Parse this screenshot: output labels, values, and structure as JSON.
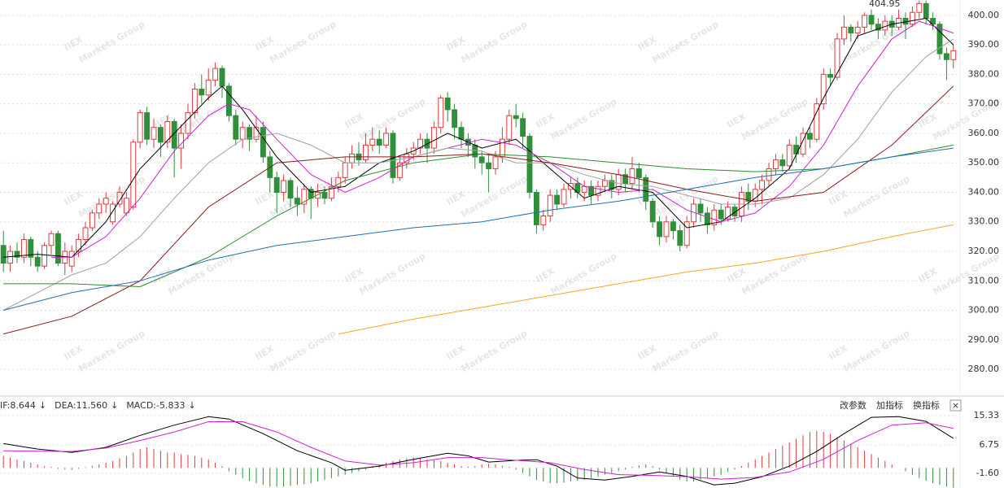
{
  "chart_data": [
    {
      "type": "candlestick",
      "xlim": [
        -0.5,
        139.5
      ],
      "ylim": [
        271.2,
        405.2
      ],
      "yticks": [
        {
          "value": 280,
          "label": "280.00"
        },
        {
          "value": 290,
          "label": "290.00"
        },
        {
          "value": 300,
          "label": "300.00"
        },
        {
          "value": 310,
          "label": "310.00"
        },
        {
          "value": 320,
          "label": "320.00"
        },
        {
          "value": 330,
          "label": "330.00"
        },
        {
          "value": 340,
          "label": "340.00"
        },
        {
          "value": 350,
          "label": "350.00"
        },
        {
          "value": 360,
          "label": "360.00"
        },
        {
          "value": 370,
          "label": "370.00"
        },
        {
          "value": 380,
          "label": "380.00"
        },
        {
          "value": 390,
          "label": "390.00"
        },
        {
          "value": 400,
          "label": "400.00"
        }
      ],
      "grid": true,
      "up_color": "#e0393e",
      "down_color": "#2f8f3a",
      "open": [
        322,
        316,
        320,
        318,
        324,
        318,
        315,
        322,
        326,
        316,
        315,
        320,
        324,
        328,
        333,
        336,
        330,
        336,
        333,
        335,
        357,
        367,
        358,
        362,
        357,
        364,
        355,
        360,
        367,
        375,
        373,
        378,
        382,
        376,
        366,
        358,
        362,
        358,
        362,
        352,
        345,
        340,
        344,
        338,
        336,
        341,
        338,
        340,
        338,
        342,
        345,
        350,
        353,
        351,
        356,
        358,
        356,
        360,
        345,
        350,
        353,
        355,
        358,
        355,
        362,
        372,
        368,
        362,
        358,
        356,
        352,
        350,
        348,
        352,
        358,
        366,
        365,
        359,
        340,
        329,
        332,
        339,
        336,
        341,
        343,
        340,
        342,
        339,
        342,
        344,
        341,
        346,
        343,
        348,
        345,
        337,
        330,
        325,
        330,
        327,
        322,
        330,
        336,
        333,
        329,
        334,
        331,
        335,
        332,
        340,
        337,
        341,
        344,
        348,
        351,
        349,
        356,
        353,
        360,
        358,
        370,
        380,
        379,
        392,
        396,
        394,
        396,
        400,
        397,
        395,
        398,
        396,
        399,
        397,
        401,
        404,
        399,
        397,
        387,
        385
      ],
      "close": [
        316,
        320,
        318,
        324,
        318,
        315,
        322,
        326,
        316,
        320,
        320,
        324,
        328,
        333,
        336,
        338,
        336,
        340,
        338,
        357,
        367,
        358,
        362,
        357,
        364,
        355,
        360,
        367,
        375,
        373,
        378,
        382,
        376,
        366,
        358,
        362,
        358,
        362,
        352,
        345,
        340,
        344,
        338,
        336,
        341,
        338,
        340,
        338,
        342,
        345,
        350,
        353,
        351,
        356,
        358,
        356,
        360,
        345,
        350,
        353,
        355,
        358,
        355,
        362,
        372,
        368,
        362,
        358,
        356,
        352,
        350,
        348,
        352,
        358,
        366,
        365,
        359,
        340,
        329,
        332,
        339,
        336,
        341,
        343,
        340,
        342,
        339,
        342,
        344,
        341,
        346,
        343,
        348,
        345,
        337,
        330,
        325,
        330,
        327,
        322,
        330,
        336,
        333,
        329,
        334,
        331,
        335,
        332,
        340,
        337,
        341,
        344,
        348,
        351,
        349,
        356,
        353,
        360,
        358,
        370,
        380,
        379,
        392,
        396,
        394,
        396,
        400,
        397,
        395,
        398,
        396,
        399,
        397,
        401,
        404,
        399,
        397,
        387,
        385,
        388
      ],
      "high": [
        327,
        322,
        323,
        326,
        325,
        320,
        323,
        327,
        327,
        323,
        322,
        326,
        330,
        334,
        338,
        340,
        337,
        342,
        340,
        358,
        368,
        369,
        365,
        363,
        366,
        365,
        363,
        370,
        377,
        380,
        382,
        384,
        383,
        377,
        368,
        364,
        363,
        366,
        364,
        354,
        347,
        346,
        345,
        342,
        343,
        342,
        343,
        342,
        345,
        347,
        352,
        356,
        357,
        360,
        362,
        361,
        362,
        361,
        352,
        355,
        357,
        360,
        360,
        364,
        373,
        374,
        370,
        364,
        360,
        358,
        354,
        353,
        354,
        362,
        368,
        370,
        367,
        360,
        341,
        334,
        341,
        341,
        343,
        345,
        345,
        344,
        344,
        344,
        346,
        346,
        348,
        348,
        352,
        350,
        346,
        338,
        332,
        332,
        331,
        329,
        332,
        338,
        338,
        335,
        336,
        336,
        337,
        336,
        342,
        343,
        343,
        346,
        350,
        353,
        353,
        358,
        359,
        362,
        362,
        372,
        382,
        382,
        394,
        400,
        397,
        398,
        401,
        402,
        399,
        400,
        400,
        402,
        401,
        403,
        405,
        405,
        401,
        398,
        389,
        390
      ],
      "low": [
        313,
        313,
        316,
        316,
        315,
        313,
        314,
        319,
        315,
        312,
        313,
        318,
        322,
        327,
        331,
        333,
        329,
        335,
        332,
        334,
        355,
        356,
        355,
        352,
        355,
        345,
        348,
        358,
        365,
        370,
        371,
        376,
        372,
        364,
        356,
        355,
        354,
        357,
        350,
        340,
        333,
        337,
        335,
        332,
        333,
        331,
        335,
        336,
        337,
        340,
        343,
        348,
        349,
        350,
        354,
        353,
        355,
        343,
        344,
        348,
        351,
        353,
        350,
        353,
        360,
        364,
        358,
        355,
        352,
        348,
        346,
        340,
        346,
        350,
        356,
        362,
        355,
        338,
        326,
        327,
        330,
        334,
        335,
        338,
        338,
        337,
        336,
        337,
        340,
        338,
        339,
        340,
        341,
        340,
        334,
        328,
        322,
        323,
        324,
        320,
        321,
        328,
        330,
        326,
        327,
        329,
        330,
        330,
        330,
        334,
        335,
        336,
        342,
        346,
        347,
        348,
        350,
        352,
        355,
        357,
        368,
        376,
        378,
        390,
        391,
        392,
        394,
        395,
        392,
        393,
        393,
        395,
        392,
        396,
        399,
        397,
        395,
        385,
        378,
        382
      ],
      "lines": [
        {
          "color": "#000000",
          "x": [
            0,
            5,
            10,
            15,
            20,
            25,
            30,
            32,
            35,
            40,
            45,
            50,
            55,
            60,
            65,
            70,
            75,
            80,
            85,
            90,
            95,
            100,
            105,
            110,
            115,
            120,
            125,
            130,
            135,
            139
          ],
          "values": [
            318,
            319,
            318,
            330,
            348,
            360,
            372,
            376,
            368,
            352,
            340,
            342,
            350,
            354,
            360,
            355,
            358,
            348,
            338,
            342,
            340,
            328,
            330,
            338,
            348,
            372,
            393,
            397,
            399,
            390
          ]
        },
        {
          "color": "#d020d0",
          "x": [
            7,
            10,
            15,
            20,
            25,
            30,
            33,
            36,
            40,
            45,
            50,
            55,
            60,
            65,
            70,
            75,
            80,
            85,
            90,
            95,
            100,
            105,
            110,
            115,
            120,
            125,
            130,
            134,
            139
          ],
          "values": [
            318,
            318,
            325,
            338,
            354,
            366,
            370,
            368,
            358,
            346,
            340,
            345,
            352,
            355,
            358,
            356,
            350,
            342,
            340,
            341,
            334,
            330,
            333,
            342,
            356,
            376,
            392,
            398,
            394
          ]
        },
        {
          "color": "#a0a0a0",
          "x": [
            0,
            5,
            10,
            15,
            20,
            25,
            30,
            35,
            40,
            45,
            50,
            55,
            60,
            65,
            70,
            75,
            80,
            85,
            90,
            95,
            100,
            105,
            110,
            115,
            120,
            125,
            130,
            135,
            139
          ],
          "values": [
            300,
            306,
            312,
            316,
            325,
            338,
            350,
            358,
            360,
            356,
            350,
            350,
            352,
            355,
            354,
            350,
            350,
            346,
            343,
            342,
            339,
            336,
            336,
            338,
            346,
            358,
            374,
            386,
            392
          ]
        },
        {
          "color": "#8b1a1a",
          "x": [
            0,
            10,
            20,
            30,
            40,
            50,
            60,
            70,
            80,
            90,
            100,
            110,
            120,
            130,
            139
          ],
          "values": [
            292,
            298,
            310,
            335,
            350,
            352,
            352,
            353,
            350,
            346,
            341,
            337,
            340,
            356,
            376
          ]
        },
        {
          "color": "#2e8b2e",
          "x": [
            0,
            10,
            20,
            30,
            40,
            50,
            60,
            70,
            80,
            90,
            100,
            110,
            120,
            130,
            139
          ],
          "values": [
            309,
            309,
            308,
            318,
            332,
            344,
            350,
            353,
            352,
            350,
            348,
            347,
            348,
            352,
            356
          ]
        },
        {
          "color": "#1f6fb5",
          "x": [
            0,
            10,
            20,
            30,
            40,
            50,
            60,
            70,
            80,
            90,
            100,
            110,
            120,
            130,
            139
          ],
          "values": [
            300,
            306,
            310,
            317,
            322,
            325,
            328,
            330,
            334,
            337,
            341,
            345,
            348,
            352,
            355
          ]
        },
        {
          "color": "#f5a623",
          "x": [
            49,
            60,
            70,
            80,
            90,
            100,
            110,
            120,
            130,
            139
          ],
          "values": [
            292,
            297,
            301,
            305,
            309,
            313,
            316,
            320,
            325,
            329
          ]
        }
      ],
      "max_label": 404.95,
      "watermark": "IIEX",
      "watermark_sub": "Markets Group"
    },
    {
      "type": "macd",
      "xlim": [
        -0.5,
        139.5
      ],
      "ylim": [
        -5.9,
        20.3
      ],
      "yticks": [
        15.33,
        6.75,
        {
          "value": -1.6,
          "label": "-1.60"
        }
      ],
      "grid": true,
      "up_color": "#e0393e",
      "down_color": "#2f8f3a",
      "legend": [
        {
          "text": "IF:8.644",
          "arrow": "↓",
          "color": "#000000"
        },
        {
          "text": "DEA:11.560",
          "arrow": "↓",
          "color": "#d020d0"
        },
        {
          "text": "MACD:-5.833",
          "arrow": "↓",
          "color": "#888888"
        }
      ],
      "bars": [
        3.5,
        3.0,
        2.5,
        2.0,
        1.5,
        1.0,
        0.5,
        0.3,
        -0.3,
        -0.5,
        -0.6,
        -0.3,
        0.2,
        0.6,
        1.0,
        1.5,
        2.0,
        2.8,
        3.5,
        4.5,
        5.5,
        6.0,
        5.5,
        5.0,
        4.5,
        4.5,
        4.0,
        3.8,
        3.5,
        3.0,
        2.5,
        1.5,
        0.5,
        -1.0,
        -2.0,
        -3.0,
        -3.8,
        -4.5,
        -5.0,
        -5.5,
        -5.5,
        -5.5,
        -5.3,
        -5.0,
        -4.8,
        -4.5,
        -4.0,
        -3.5,
        -3.0,
        -2.5,
        -2.0,
        -1.5,
        -1.0,
        -0.5,
        0.5,
        1.0,
        1.5,
        2.0,
        2.5,
        2.8,
        3.0,
        2.8,
        2.5,
        2.2,
        2.0,
        1.5,
        1.0,
        0.5,
        0.3,
        0.5,
        1.0,
        1.2,
        1.0,
        0.6,
        0.3,
        -0.5,
        -1.5,
        -2.5,
        -3.5,
        -4.0,
        -4.5,
        -4.5,
        -4.3,
        -4.0,
        -3.8,
        -3.5,
        -3.0,
        -2.5,
        -2.0,
        -1.5,
        -1.0,
        -0.5,
        0.3,
        0.8,
        1.0,
        0.5,
        -0.5,
        -1.5,
        -2.5,
        -3.5,
        -4.0,
        -4.0,
        -3.5,
        -3.0,
        -2.5,
        -2.0,
        -1.2,
        -0.5,
        0.5,
        1.5,
        2.5,
        3.5,
        4.5,
        5.5,
        6.5,
        7.5,
        8.5,
        9.5,
        10.5,
        10.8,
        10.5,
        10.0,
        9.0,
        8.0,
        7.0,
        6.0,
        5.0,
        4.0,
        3.0,
        2.0,
        1.0,
        0.0,
        -1.0,
        -2.0,
        -3.0,
        -3.8,
        -4.5,
        -5.0,
        -5.5,
        -5.833
      ],
      "lines": [
        {
          "color": "#000000",
          "x": [
            0,
            5,
            10,
            15,
            20,
            25,
            30,
            33,
            38,
            43,
            48,
            50,
            55,
            60,
            65,
            68,
            71,
            75,
            78,
            81,
            84,
            88,
            92,
            96,
            100,
            104,
            107,
            111,
            115,
            119,
            123,
            127,
            131,
            135,
            139
          ],
          "values": [
            7.1,
            5.5,
            4.5,
            6.0,
            9.5,
            12.5,
            15.0,
            14.3,
            10,
            5,
            1.5,
            -0.7,
            0.5,
            2.5,
            4.3,
            3.5,
            1.7,
            2.2,
            2.4,
            0.5,
            -3.0,
            -3.6,
            -2.5,
            -1.2,
            -2.5,
            -5,
            -4.5,
            -2.6,
            0.5,
            4.8,
            10,
            14.8,
            15.0,
            13.6,
            8.644
          ]
        },
        {
          "color": "#d020d0",
          "x": [
            0,
            10,
            15,
            20,
            25,
            30,
            35,
            40,
            45,
            50,
            55,
            60,
            65,
            70,
            75,
            80,
            85,
            90,
            95,
            100,
            105,
            110,
            115,
            120,
            125,
            130,
            135,
            139
          ],
          "values": [
            5,
            4.8,
            5.8,
            8,
            10.5,
            13.5,
            13.5,
            10.5,
            6,
            2,
            0.8,
            1.5,
            3,
            3,
            2.2,
            1.5,
            -0.5,
            -2,
            -2.2,
            -2.6,
            -3.3,
            -2.8,
            -1.2,
            2.5,
            8,
            12.5,
            13.2,
            11.56
          ]
        }
      ]
    }
  ],
  "toolbar": [
    "改参数",
    "加指标",
    "换指标",
    "×"
  ]
}
